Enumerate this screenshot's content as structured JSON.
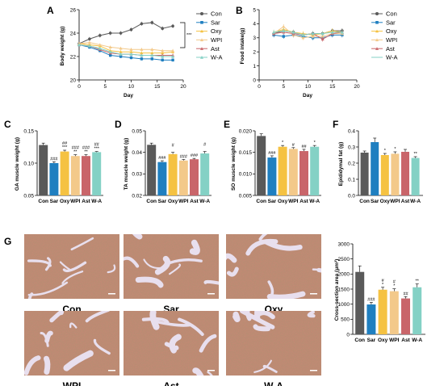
{
  "colors": {
    "Con": "#5a5a5a",
    "Sar": "#1f7fc0",
    "Oxy": "#f5c242",
    "WPI": "#f3c98a",
    "Ast": "#c9656a",
    "W-A": "#84d1c5",
    "tissue": "#c98775",
    "fascia": "#e8dfee",
    "capillary": "#5b8a5a"
  },
  "legend": [
    "Con",
    "Sar",
    "Oxy",
    "WPI",
    "Ast",
    "W-A"
  ],
  "chart_data": [
    {
      "panel": "A",
      "type": "line",
      "xlabel": "Day",
      "ylabel": "Body weight (g)",
      "xlim": [
        0,
        20
      ],
      "ylim": [
        20,
        26
      ],
      "xticks": [
        0,
        5,
        10,
        15,
        20
      ],
      "yticks": [
        20,
        22,
        24,
        26
      ],
      "x": [
        0,
        2,
        4,
        6,
        8,
        10,
        12,
        14,
        16,
        18
      ],
      "series": [
        {
          "name": "Con",
          "values": [
            23.1,
            23.5,
            23.8,
            24.0,
            24.0,
            24.3,
            24.8,
            24.9,
            24.4,
            24.6
          ]
        },
        {
          "name": "Sar",
          "values": [
            23.0,
            22.8,
            22.5,
            22.1,
            22.0,
            21.9,
            21.8,
            21.8,
            21.7,
            21.7
          ]
        },
        {
          "name": "Oxy",
          "values": [
            23.1,
            23.0,
            22.9,
            22.5,
            22.4,
            22.4,
            22.3,
            22.3,
            22.3,
            22.4
          ]
        },
        {
          "name": "WPI",
          "values": [
            23.1,
            23.2,
            23.0,
            22.8,
            22.7,
            22.6,
            22.6,
            22.6,
            22.5,
            22.5
          ]
        },
        {
          "name": "Ast",
          "values": [
            23.0,
            22.9,
            22.6,
            22.3,
            22.2,
            22.2,
            22.1,
            22.1,
            22.1,
            22.1
          ]
        },
        {
          "name": "W-A",
          "values": [
            23.0,
            22.9,
            22.7,
            22.4,
            22.2,
            22.2,
            22.1,
            22.1,
            22.0,
            22.0
          ]
        }
      ],
      "annotation": "***"
    },
    {
      "panel": "B",
      "type": "line",
      "xlabel": "Day",
      "ylabel": "Food intake(g)",
      "xlim": [
        0,
        20
      ],
      "ylim": [
        0,
        5
      ],
      "xticks": [
        0,
        5,
        10,
        15,
        20
      ],
      "yticks": [
        0,
        1,
        2,
        3,
        4,
        5
      ],
      "x": [
        3,
        5,
        7,
        9,
        11,
        13,
        15,
        17
      ],
      "series": [
        {
          "name": "Con",
          "values": [
            3.3,
            3.5,
            3.4,
            3.2,
            3.3,
            3.3,
            3.5,
            3.5
          ]
        },
        {
          "name": "Sar",
          "values": [
            3.2,
            3.1,
            3.2,
            3.1,
            3.0,
            3.0,
            3.2,
            3.2
          ]
        },
        {
          "name": "Oxy",
          "values": [
            3.4,
            3.6,
            3.4,
            3.3,
            3.2,
            3.3,
            3.5,
            3.4
          ]
        },
        {
          "name": "WPI",
          "values": [
            3.3,
            3.8,
            3.2,
            3.0,
            3.1,
            3.1,
            3.3,
            3.3
          ]
        },
        {
          "name": "Ast",
          "values": [
            3.3,
            3.4,
            3.3,
            3.2,
            3.3,
            2.9,
            3.3,
            3.4
          ]
        },
        {
          "name": "W-A",
          "values": [
            3.4,
            3.5,
            3.4,
            3.2,
            3.3,
            3.3,
            3.4,
            3.4
          ]
        }
      ]
    },
    {
      "panel": "C",
      "type": "bar",
      "ylabel": "GA muscle weight (g)",
      "ylim": [
        0.05,
        0.15
      ],
      "yticks": [
        "0.05",
        "0.10",
        "0.15"
      ],
      "categories": [
        "Con",
        "Sar",
        "Oxy",
        "WPI",
        "Ast",
        "W-A"
      ],
      "values": [
        0.128,
        0.1,
        0.118,
        0.111,
        0.111,
        0.117
      ],
      "errors": [
        0.003,
        0.002,
        0.002,
        0.002,
        0.002,
        0.001
      ],
      "sig": [
        [
          "",
          ""
        ],
        [
          "",
          "###"
        ],
        [
          "##",
          "***"
        ],
        [
          "###",
          "**"
        ],
        [
          "###",
          "**"
        ],
        [
          "##",
          "***"
        ]
      ]
    },
    {
      "panel": "D",
      "type": "bar",
      "ylabel": "TA muscle weight (g)",
      "ylim": [
        0.02,
        0.05
      ],
      "yticks": [
        "0.02",
        "0.03",
        "0.04",
        "0.05"
      ],
      "categories": [
        "Con",
        "Sar",
        "Oxy",
        "WPI",
        "Ast",
        "W-A"
      ],
      "values": [
        0.0435,
        0.0355,
        0.0392,
        0.0362,
        0.0368,
        0.0395
      ],
      "errors": [
        0.0008,
        0.0006,
        0.0008,
        0.0005,
        0.0004,
        0.0009
      ],
      "sig": [
        [
          "",
          ""
        ],
        [
          "",
          "###"
        ],
        [
          "#",
          ""
        ],
        [
          "",
          "###"
        ],
        [
          "",
          "###"
        ],
        [
          "#",
          ""
        ]
      ]
    },
    {
      "panel": "E",
      "type": "bar",
      "ylabel": "SO muscle weight (g)",
      "ylim": [
        0.005,
        0.02
      ],
      "yticks": [
        "0.005",
        "0.010",
        "0.015",
        "0.020"
      ],
      "categories": [
        "Con",
        "Sar",
        "Oxy",
        "WPI",
        "Ast",
        "W-A"
      ],
      "values": [
        0.0188,
        0.0138,
        0.0163,
        0.0158,
        0.0153,
        0.0163
      ],
      "errors": [
        0.0005,
        0.0004,
        0.0003,
        0.0003,
        0.0004,
        0.0003
      ],
      "sig": [
        [
          "",
          ""
        ],
        [
          "",
          "###"
        ],
        [
          "",
          "*"
        ],
        [
          "",
          "#"
        ],
        [
          "",
          "##"
        ],
        [
          "",
          "*"
        ]
      ]
    },
    {
      "panel": "F",
      "type": "bar",
      "ylabel": "Epididymal fat (g)",
      "ylim": [
        0.0,
        0.4
      ],
      "yticks": [
        "0.0",
        "0.1",
        "0.2",
        "0.3",
        "0.4"
      ],
      "categories": [
        "Con",
        "Sar",
        "Oxy",
        "WPI",
        "Ast",
        "W-A"
      ],
      "values": [
        0.265,
        0.33,
        0.25,
        0.258,
        0.27,
        0.232
      ],
      "errors": [
        0.01,
        0.025,
        0.01,
        0.012,
        0.015,
        0.008
      ],
      "sig": [
        [
          "",
          ""
        ],
        [
          "",
          ""
        ],
        [
          "",
          "*"
        ],
        [
          "",
          "*"
        ],
        [
          "",
          ""
        ],
        [
          "",
          "**"
        ]
      ]
    },
    {
      "panel": "G",
      "type": "bar",
      "ylabel": "Cross-section area (μm²)",
      "ylim": [
        0,
        3000
      ],
      "yticks": [
        "0",
        "500",
        "1000",
        "1500",
        "2000",
        "2500",
        "3000"
      ],
      "categories": [
        "Con",
        "Sar",
        "Oxy",
        "WPI",
        "Ast",
        "W-A"
      ],
      "values": [
        2070,
        990,
        1480,
        1430,
        1190,
        1560
      ],
      "errors": [
        200,
        70,
        80,
        80,
        60,
        110
      ],
      "sig": [
        [
          "",
          ""
        ],
        [
          "",
          "###"
        ],
        [
          "#",
          "*"
        ],
        [
          "#",
          "*"
        ],
        [
          "",
          "##"
        ],
        [
          "",
          "**"
        ]
      ]
    }
  ],
  "histology": {
    "labels": [
      "Con",
      "Sar",
      "Oxy",
      "WPI",
      "Ast",
      "W-A"
    ]
  },
  "panel_labels": [
    "A",
    "B",
    "C",
    "D",
    "E",
    "F",
    "G"
  ]
}
